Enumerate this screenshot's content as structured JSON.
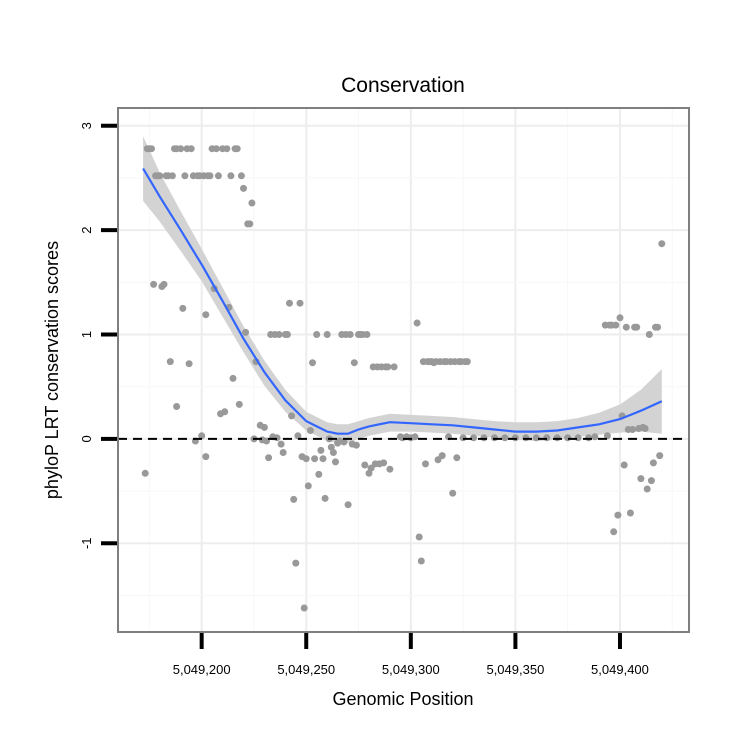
{
  "chart_data": {
    "type": "scatter",
    "title": "Conservation",
    "xlabel": "Genomic Position",
    "ylabel": "phyloP LRT conservation scores",
    "xlim": [
      5049160,
      5049433
    ],
    "ylim": [
      -1.85,
      3.17
    ],
    "x_ticks": [
      5049200,
      5049250,
      5049300,
      5049350,
      5049400
    ],
    "x_tick_labels": [
      "5,049,200",
      "5,049,250",
      "5,049,300",
      "5,049,350",
      "5,049,400"
    ],
    "y_ticks": [
      -1,
      0,
      1,
      2,
      3
    ],
    "y_tick_labels": [
      "-1",
      "0",
      "1",
      "2",
      "3"
    ],
    "reference_line": {
      "y": 0,
      "style": "dashed"
    },
    "colors": {
      "points": "#999999",
      "smooth_line": "#3366FF",
      "ribbon": "#D3D3D3",
      "panel_border": "#7F7F7F",
      "grid_major": "#EDEDED",
      "grid_minor": "#F7F7F7"
    },
    "points": [
      [
        5049173,
        -0.33
      ],
      [
        5049174,
        2.78
      ],
      [
        5049175,
        2.78
      ],
      [
        5049176,
        2.78
      ],
      [
        5049177,
        1.48
      ],
      [
        5049178,
        2.52
      ],
      [
        5049179,
        2.52
      ],
      [
        5049180,
        2.52
      ],
      [
        5049181,
        1.46
      ],
      [
        5049182,
        1.48
      ],
      [
        5049183,
        2.52
      ],
      [
        5049184,
        2.52
      ],
      [
        5049185,
        0.74
      ],
      [
        5049186,
        2.52
      ],
      [
        5049187,
        2.78
      ],
      [
        5049188,
        2.78
      ],
      [
        5049188,
        0.31
      ],
      [
        5049190,
        2.78
      ],
      [
        5049191,
        1.25
      ],
      [
        5049192,
        2.52
      ],
      [
        5049193,
        2.78
      ],
      [
        5049194,
        0.72
      ],
      [
        5049195,
        2.78
      ],
      [
        5049196,
        2.52
      ],
      [
        5049197,
        -0.02
      ],
      [
        5049198,
        2.52
      ],
      [
        5049199,
        2.52
      ],
      [
        5049200,
        0.03
      ],
      [
        5049201,
        2.52
      ],
      [
        5049202,
        1.19
      ],
      [
        5049202,
        -0.17
      ],
      [
        5049203,
        2.52
      ],
      [
        5049204,
        2.52
      ],
      [
        5049205,
        2.78
      ],
      [
        5049206,
        1.44
      ],
      [
        5049207,
        2.78
      ],
      [
        5049208,
        2.52
      ],
      [
        5049209,
        0.24
      ],
      [
        5049210,
        2.78
      ],
      [
        5049211,
        0.26
      ],
      [
        5049212,
        2.78
      ],
      [
        5049213,
        1.26
      ],
      [
        5049214,
        2.52
      ],
      [
        5049215,
        0.58
      ],
      [
        5049216,
        2.78
      ],
      [
        5049217,
        2.78
      ],
      [
        5049218,
        0.33
      ],
      [
        5049219,
        2.52
      ],
      [
        5049220,
        2.4
      ],
      [
        5049221,
        1.02
      ],
      [
        5049222,
        2.06
      ],
      [
        5049223,
        2.06
      ],
      [
        5049224,
        2.26
      ],
      [
        5049225,
        0.0
      ],
      [
        5049226,
        0.74
      ],
      [
        5049228,
        0.13
      ],
      [
        5049229,
        -0.01
      ],
      [
        5049230,
        0.11
      ],
      [
        5049231,
        -0.02
      ],
      [
        5049232,
        -0.18
      ],
      [
        5049233,
        1.0
      ],
      [
        5049234,
        0.02
      ],
      [
        5049235,
        1.0
      ],
      [
        5049236,
        0.01
      ],
      [
        5049237,
        1.0
      ],
      [
        5049238,
        -0.05
      ],
      [
        5049239,
        -0.13
      ],
      [
        5049240,
        1.0
      ],
      [
        5049241,
        1.0
      ],
      [
        5049242,
        1.3
      ],
      [
        5049243,
        0.22
      ],
      [
        5049244,
        -0.58
      ],
      [
        5049245,
        -1.19
      ],
      [
        5049246,
        0.03
      ],
      [
        5049247,
        1.3
      ],
      [
        5049248,
        -0.17
      ],
      [
        5049249,
        -1.62
      ],
      [
        5049250,
        -0.19
      ],
      [
        5049251,
        -0.45
      ],
      [
        5049252,
        0.08
      ],
      [
        5049253,
        0.73
      ],
      [
        5049254,
        -0.19
      ],
      [
        5049255,
        1.0
      ],
      [
        5049256,
        -0.34
      ],
      [
        5049257,
        -0.11
      ],
      [
        5049258,
        -0.19
      ],
      [
        5049259,
        -0.57
      ],
      [
        5049260,
        1.0
      ],
      [
        5049261,
        0.0
      ],
      [
        5049262,
        -0.08
      ],
      [
        5049263,
        -0.13
      ],
      [
        5049264,
        -0.22
      ],
      [
        5049265,
        -0.04
      ],
      [
        5049266,
        -0.02
      ],
      [
        5049267,
        1.0
      ],
      [
        5049268,
        -0.03
      ],
      [
        5049269,
        1.0
      ],
      [
        5049270,
        -0.63
      ],
      [
        5049271,
        1.0
      ],
      [
        5049272,
        -0.05
      ],
      [
        5049273,
        0.73
      ],
      [
        5049274,
        -0.06
      ],
      [
        5049275,
        1.0
      ],
      [
        5049276,
        1.0
      ],
      [
        5049277,
        1.0
      ],
      [
        5049278,
        -0.25
      ],
      [
        5049279,
        1.0
      ],
      [
        5049280,
        -0.33
      ],
      [
        5049281,
        -0.28
      ],
      [
        5049282,
        0.69
      ],
      [
        5049283,
        -0.24
      ],
      [
        5049284,
        0.69
      ],
      [
        5049285,
        -0.24
      ],
      [
        5049286,
        0.69
      ],
      [
        5049287,
        -0.23
      ],
      [
        5049288,
        0.69
      ],
      [
        5049289,
        0.69
      ],
      [
        5049290,
        -0.29
      ],
      [
        5049292,
        0.69
      ],
      [
        5049295,
        0.02
      ],
      [
        5049296,
        0.01
      ],
      [
        5049298,
        0.02
      ],
      [
        5049300,
        0.01
      ],
      [
        5049302,
        0.02
      ],
      [
        5049303,
        1.11
      ],
      [
        5049304,
        -0.94
      ],
      [
        5049305,
        -1.17
      ],
      [
        5049306,
        0.74
      ],
      [
        5049307,
        -0.24
      ],
      [
        5049308,
        0.74
      ],
      [
        5049309,
        0.74
      ],
      [
        5049310,
        0.74
      ],
      [
        5049311,
        0.73
      ],
      [
        5049312,
        0.74
      ],
      [
        5049313,
        -0.2
      ],
      [
        5049314,
        0.74
      ],
      [
        5049315,
        -0.16
      ],
      [
        5049316,
        0.74
      ],
      [
        5049317,
        0.74
      ],
      [
        5049318,
        0.02
      ],
      [
        5049319,
        0.74
      ],
      [
        5049320,
        -0.52
      ],
      [
        5049321,
        0.74
      ],
      [
        5049322,
        -0.18
      ],
      [
        5049323,
        0.74
      ],
      [
        5049324,
        0.74
      ],
      [
        5049325,
        0.01
      ],
      [
        5049326,
        0.74
      ],
      [
        5049327,
        0.74
      ],
      [
        5049330,
        0.01
      ],
      [
        5049335,
        0.01
      ],
      [
        5049340,
        0.01
      ],
      [
        5049345,
        0.01
      ],
      [
        5049350,
        0.01
      ],
      [
        5049355,
        0.01
      ],
      [
        5049360,
        0.01
      ],
      [
        5049365,
        0.01
      ],
      [
        5049370,
        0.01
      ],
      [
        5049375,
        0.01
      ],
      [
        5049380,
        0.01
      ],
      [
        5049385,
        0.01
      ],
      [
        5049388,
        0.02
      ],
      [
        5049393,
        1.09
      ],
      [
        5049394,
        0.03
      ],
      [
        5049395,
        1.09
      ],
      [
        5049396,
        1.09
      ],
      [
        5049397,
        -0.89
      ],
      [
        5049398,
        1.09
      ],
      [
        5049399,
        -0.73
      ],
      [
        5049400,
        1.16
      ],
      [
        5049401,
        0.22
      ],
      [
        5049402,
        -0.25
      ],
      [
        5049403,
        1.07
      ],
      [
        5049404,
        0.09
      ],
      [
        5049405,
        -0.71
      ],
      [
        5049406,
        0.09
      ],
      [
        5049407,
        1.07
      ],
      [
        5049408,
        1.07
      ],
      [
        5049409,
        0.1
      ],
      [
        5049410,
        -0.38
      ],
      [
        5049411,
        0.11
      ],
      [
        5049412,
        0.1
      ],
      [
        5049413,
        -0.48
      ],
      [
        5049414,
        1.0
      ],
      [
        5049415,
        -0.4
      ],
      [
        5049416,
        -0.23
      ],
      [
        5049417,
        1.07
      ],
      [
        5049418,
        1.07
      ],
      [
        5049419,
        -0.16
      ],
      [
        5049420,
        1.87
      ]
    ],
    "smooth": {
      "x": [
        5049172,
        5049180,
        5049190,
        5049200,
        5049210,
        5049220,
        5049230,
        5049240,
        5049250,
        5049260,
        5049265,
        5049270,
        5049275,
        5049280,
        5049290,
        5049300,
        5049310,
        5049320,
        5049330,
        5049340,
        5049350,
        5049360,
        5049370,
        5049380,
        5049390,
        5049400,
        5049410,
        5049420
      ],
      "y": [
        2.59,
        2.32,
        2.0,
        1.67,
        1.32,
        0.96,
        0.64,
        0.37,
        0.17,
        0.07,
        0.05,
        0.05,
        0.09,
        0.12,
        0.16,
        0.15,
        0.14,
        0.13,
        0.11,
        0.09,
        0.07,
        0.07,
        0.08,
        0.11,
        0.14,
        0.19,
        0.27,
        0.36
      ],
      "upper": [
        2.9,
        2.55,
        2.18,
        1.82,
        1.45,
        1.08,
        0.75,
        0.47,
        0.26,
        0.16,
        0.14,
        0.14,
        0.17,
        0.2,
        0.24,
        0.23,
        0.22,
        0.21,
        0.19,
        0.17,
        0.16,
        0.16,
        0.17,
        0.2,
        0.25,
        0.33,
        0.47,
        0.67
      ],
      "lower": [
        2.28,
        2.08,
        1.8,
        1.51,
        1.17,
        0.83,
        0.51,
        0.26,
        0.08,
        -0.02,
        -0.04,
        -0.04,
        0.0,
        0.03,
        0.07,
        0.07,
        0.06,
        0.05,
        0.03,
        0.01,
        -0.01,
        -0.02,
        -0.01,
        0.02,
        0.04,
        0.06,
        0.07,
        0.05
      ]
    }
  }
}
